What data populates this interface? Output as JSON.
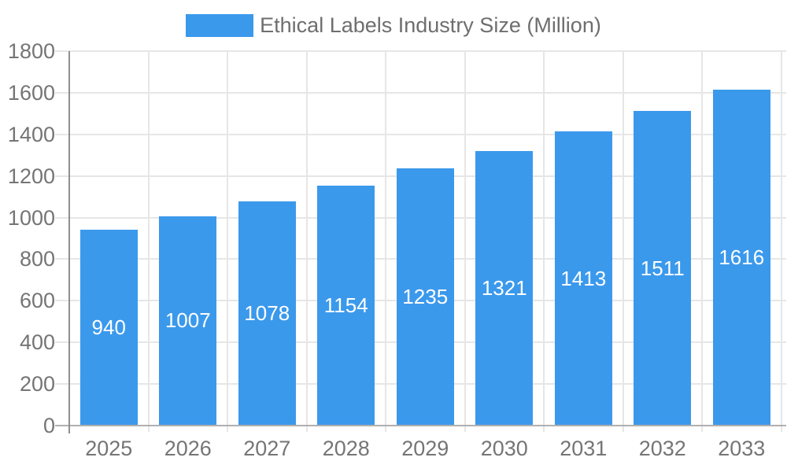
{
  "chart_data": {
    "type": "bar",
    "title": "Ethical Labels Industry Size (Million)",
    "legend": {
      "label": "Ethical Labels Industry Size (Million)",
      "position": "top"
    },
    "categories": [
      "2025",
      "2026",
      "2027",
      "2028",
      "2029",
      "2030",
      "2031",
      "2032",
      "2033"
    ],
    "values": [
      940,
      1007,
      1078,
      1154,
      1235,
      1321,
      1413,
      1511,
      1616
    ],
    "xlabel": "",
    "ylabel": "",
    "ylim": [
      0,
      1800
    ],
    "yticks": [
      0,
      200,
      400,
      600,
      800,
      1000,
      1200,
      1400,
      1600,
      1800
    ],
    "grid": true,
    "bar_value_labels_inside": true,
    "colors": {
      "bar": "#3b99ec",
      "bar_label": "#ffffff",
      "axis_text": "#757575",
      "legend_text": "#6e6e6e",
      "gridline": "#e6e6e6",
      "axis_line": "#8f8f8f",
      "baseline": "#b0b0b0"
    }
  }
}
